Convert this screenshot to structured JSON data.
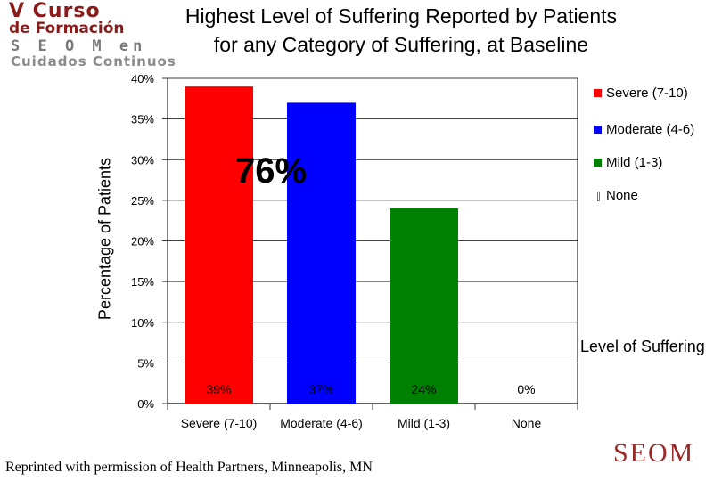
{
  "logo": {
    "line1": "V Curso",
    "line2": "de Formación",
    "line3": "S E O M en",
    "line4": "Cuidados Continuos",
    "color": "#8a1b1b"
  },
  "highlight": "76%",
  "credit": "Reprinted with permission of Health Partners, Minneapolis, MN",
  "brand": "SEOM",
  "chart_data": {
    "type": "bar",
    "title": "Highest Level of Suffering Reported by Patients",
    "subtitle": "for any Category of Suffering, at Baseline",
    "xlabel": "Level of Suffering",
    "ylabel": "Percentage  of Patients",
    "categories": [
      "Severe (7-10)",
      "Moderate (4-6)",
      "Mild (1-3)",
      "None"
    ],
    "values": [
      39,
      37,
      24,
      0
    ],
    "data_labels": [
      "39%",
      "37%",
      "24%",
      "0%"
    ],
    "colors": [
      "#ff0000",
      "#0000ff",
      "#008000",
      "#ffffff"
    ],
    "ylim": [
      0,
      40
    ],
    "yticks": [
      "0%",
      "5%",
      "10%",
      "15%",
      "20%",
      "25%",
      "30%",
      "35%",
      "40%"
    ],
    "grid": true,
    "legend": [
      {
        "label": "Severe (7-10)",
        "color": "#ff0000"
      },
      {
        "label": "Moderate (4-6)",
        "color": "#0000ff"
      },
      {
        "label": "Mild (1-3)",
        "color": "#008000"
      },
      {
        "label": "None",
        "color": "#ffffff"
      }
    ],
    "legend_position": "right"
  }
}
